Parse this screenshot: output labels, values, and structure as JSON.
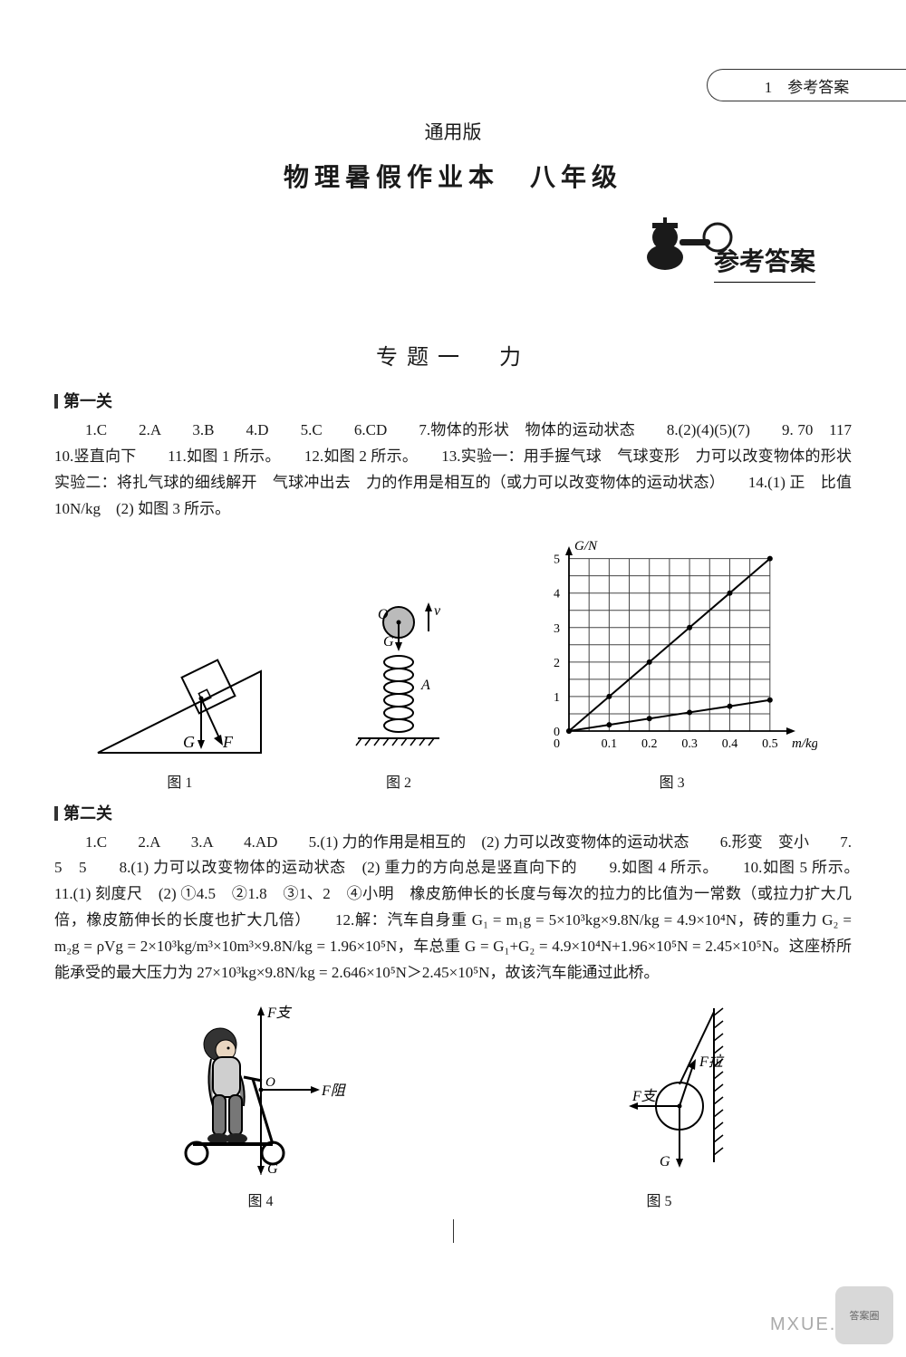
{
  "header_tab": "1　参考答案",
  "title_small": "通用版",
  "title_large": "物理暑假作业本　八年级",
  "badge_text": "参考答案",
  "section1": "专题一　力",
  "level1_label": "第一关",
  "level1_text": "1.C　　2.A　　3.B　　4.D　　5.C　　6.CD　　7.物体的形状　物体的运动状态　　8.(2)(4)(5)(7)　　9. 70　117　　10.竖直向下　　11.如图 1 所示。　　12.如图 2 所示。　　13.实验一：用手握气球　气球变形　力可以改变物体的形状　实验二：将扎气球的细线解开　气球冲出去　力的作用是相互的（或力可以改变物体的运动状态）　　14.(1) 正　比值　10N/kg　(2) 如图 3 所示。",
  "fig1_cap": "图 1",
  "fig2_cap": "图 2",
  "fig3_cap": "图 3",
  "fig3": {
    "ylabel": "G/N",
    "xlabel": "m/kg",
    "xlim": [
      0,
      0.55
    ],
    "ylim": [
      0,
      5.2
    ],
    "xticks": [
      0.1,
      0.2,
      0.3,
      0.4,
      0.5
    ],
    "yticks": [
      0,
      1,
      2,
      3,
      4,
      5
    ],
    "grid_color": "#444444",
    "series": [
      {
        "points": [
          [
            0,
            0
          ],
          [
            0.1,
            1
          ],
          [
            0.2,
            2
          ],
          [
            0.3,
            3
          ],
          [
            0.4,
            4
          ],
          [
            0.5,
            5
          ]
        ],
        "color": "#000000",
        "marker": "dot"
      },
      {
        "points": [
          [
            0,
            0
          ],
          [
            0.1,
            0.18
          ],
          [
            0.2,
            0.36
          ],
          [
            0.3,
            0.54
          ],
          [
            0.4,
            0.72
          ],
          [
            0.5,
            0.9
          ]
        ],
        "color": "#000000",
        "marker": "dot"
      }
    ]
  },
  "level2_label": "第二关",
  "level2_text_a": "1.C　　2.A　　3.A　　4.AD　　5.(1) 力的作用是相互的　(2) 力可以改变物体的运动状态　　6.形变　变小　　7. 5　5　　8.(1) 力可以改变物体的运动状态　(2) 重力的方向总是竖直向下的　　9.如图 4 所示。　　10.如图 5 所示。　　11.(1) 刻度尺　(2) ①4.5　②1.8　③1、2　④小明　橡皮筋伸长的长度与每次的拉力的比值为一常数（或拉力扩大几倍，橡皮筋伸长的长度也扩大几倍）　　12.解：汽车自身重 G₁ = m₁g = 5×10³kg×9.8N/kg = 4.9×10⁴N，砖的重力 G₂ = m₂g = ρVg = 2×10³kg/m³×10m³×9.8N/kg = 1.96×10⁵N，车总重 G = G₁+G₂ = 4.9×10⁴N+1.96×10⁵N = 2.45×10⁵N。这座桥所能承受的最大压力为 27×10³kg×9.8N/kg = 2.646×10⁵N＞2.45×10⁵N，故该汽车能通过此桥。",
  "fig4_cap": "图 4",
  "fig5_cap": "图 5",
  "fig1": {
    "G": "G",
    "F": "F"
  },
  "fig2": {
    "O": "O",
    "G": "G",
    "v": "v",
    "A": "A"
  },
  "fig4": {
    "Fz": "F支",
    "Fzu": "F阻",
    "G": "G",
    "O": "O"
  },
  "fig5": {
    "Fl": "F拉",
    "Fz": "F支",
    "G": "G"
  },
  "watermark": "MXUE.COM",
  "corner": "答案圈"
}
